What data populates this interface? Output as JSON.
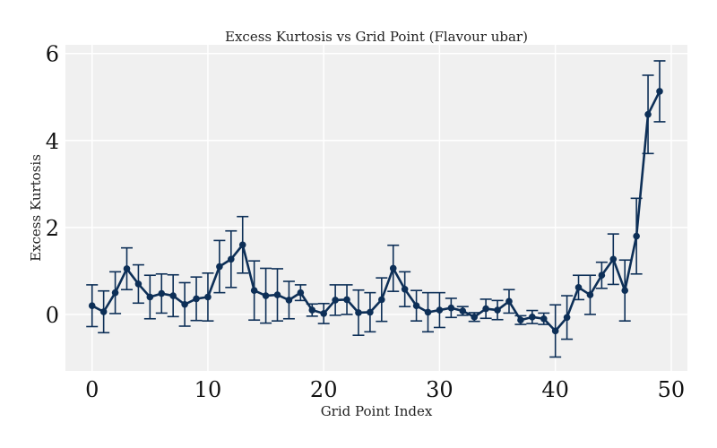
{
  "chart_data": {
    "type": "line",
    "title": "Excess Kurtosis vs Grid Point (Flavour ubar)",
    "xlabel": "Grid Point Index",
    "ylabel": "Excess Kurtosis",
    "xlim": [
      -2.3,
      51.4
    ],
    "ylim": [
      -1.3,
      6.2
    ],
    "xticks": [
      0,
      10,
      20,
      30,
      40,
      50
    ],
    "yticks": [
      0,
      2,
      4,
      6
    ],
    "grid": true,
    "colors": {
      "series": "#0d2f57",
      "background": "#f0f0f0",
      "grid": "#ffffff"
    },
    "series": [
      {
        "x": [
          0,
          1,
          2,
          3,
          4,
          5,
          6,
          7,
          8,
          9,
          10,
          11,
          12,
          13,
          14,
          15,
          16,
          17,
          18,
          19,
          20,
          21,
          22,
          23,
          24,
          25,
          26,
          27,
          28,
          29,
          30,
          31,
          32,
          33,
          34,
          35,
          36,
          37,
          38,
          39,
          40,
          41,
          42,
          43,
          44,
          45,
          46,
          47,
          48,
          49
        ],
        "y": [
          0.2,
          0.06,
          0.5,
          1.05,
          0.7,
          0.4,
          0.48,
          0.43,
          0.23,
          0.36,
          0.4,
          1.1,
          1.27,
          1.6,
          0.55,
          0.43,
          0.45,
          0.33,
          0.5,
          0.1,
          0.02,
          0.33,
          0.34,
          0.04,
          0.05,
          0.34,
          1.06,
          0.58,
          0.2,
          0.05,
          0.1,
          0.15,
          0.08,
          -0.06,
          0.13,
          0.1,
          0.3,
          -0.13,
          -0.06,
          -0.1,
          -0.38,
          -0.07,
          0.62,
          0.45,
          0.9,
          1.27,
          0.55,
          1.8,
          4.6,
          5.13
        ],
        "err": [
          0.48,
          0.48,
          0.48,
          0.48,
          0.44,
          0.5,
          0.45,
          0.48,
          0.5,
          0.5,
          0.55,
          0.6,
          0.65,
          0.65,
          0.68,
          0.63,
          0.6,
          0.43,
          0.18,
          0.14,
          0.23,
          0.35,
          0.34,
          0.52,
          0.45,
          0.5,
          0.53,
          0.4,
          0.35,
          0.45,
          0.4,
          0.22,
          0.1,
          0.1,
          0.22,
          0.22,
          0.27,
          0.1,
          0.15,
          0.13,
          0.6,
          0.5,
          0.28,
          0.45,
          0.3,
          0.58,
          0.7,
          0.87,
          0.9,
          0.7
        ]
      }
    ]
  }
}
